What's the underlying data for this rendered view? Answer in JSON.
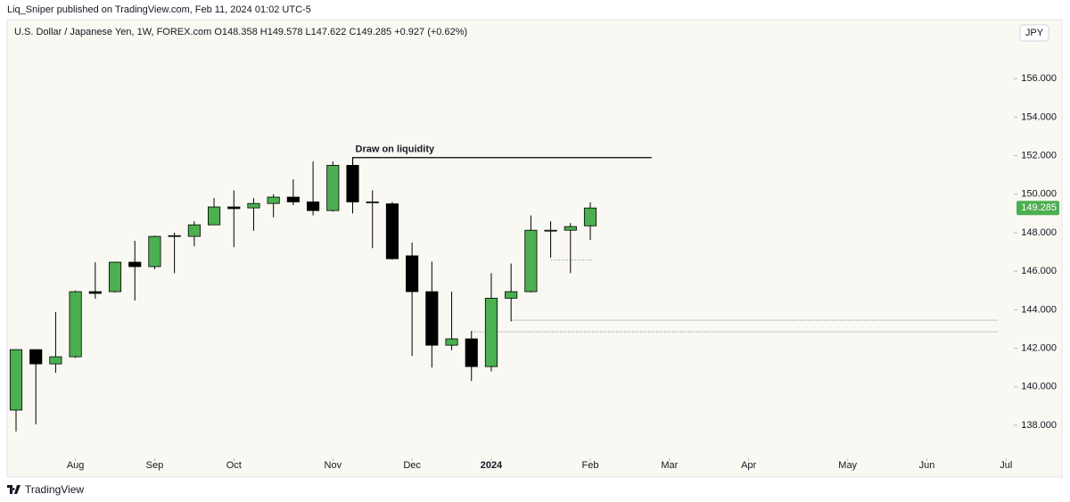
{
  "header": {
    "published": "Liq_Sniper published on TradingView.com, Feb 11, 2024 01:02 UTC-5"
  },
  "footer": {
    "brand": "TradingView"
  },
  "chart_data": {
    "type": "candlestick",
    "title": "U.S. Dollar / Japanese Yen, 1W, FOREX.com  O148.358  H149.578  L147.622  C149.285  +0.927 (+0.62%)",
    "currency": "JPY",
    "up_color": "#4caf50",
    "down_color": "#000000",
    "open": [
      138.79,
      141.93,
      141.19,
      141.56,
      144.94,
      144.94,
      146.47,
      146.24,
      147.81,
      147.81,
      148.41,
      149.34,
      149.29,
      149.52,
      149.85,
      149.6,
      149.15,
      151.5,
      149.6,
      149.5,
      146.8,
      144.94,
      142.16,
      142.49,
      141.05,
      144.6,
      144.94,
      148.13,
      148.13,
      148.358
    ],
    "high": [
      141.95,
      141.95,
      143.88,
      145.0,
      146.47,
      146.5,
      147.58,
      147.85,
      148.0,
      148.6,
      149.8,
      150.2,
      149.8,
      150.0,
      150.77,
      151.7,
      151.7,
      151.9,
      150.2,
      149.6,
      147.49,
      146.5,
      144.94,
      142.9,
      145.9,
      146.4,
      148.9,
      148.6,
      148.5,
      149.578
    ],
    "low": [
      137.68,
      138.05,
      140.73,
      141.5,
      144.57,
      144.9,
      144.48,
      146.1,
      145.9,
      147.3,
      148.4,
      147.25,
      148.1,
      148.8,
      149.43,
      148.9,
      149.1,
      149.0,
      147.2,
      146.6,
      141.6,
      141.0,
      141.9,
      140.3,
      140.8,
      143.4,
      144.9,
      146.7,
      145.9,
      147.622
    ],
    "close": [
      141.93,
      141.19,
      141.56,
      144.94,
      144.85,
      146.47,
      146.24,
      147.81,
      147.85,
      148.41,
      149.34,
      149.25,
      149.52,
      149.85,
      149.6,
      149.15,
      151.5,
      149.6,
      149.6,
      146.65,
      144.94,
      142.16,
      142.49,
      141.05,
      144.6,
      144.94,
      148.13,
      148.13,
      148.32,
      149.285
    ],
    "xlim": [
      -0.45,
      50.3
    ],
    "xticks": [
      {
        "value": 3,
        "label": "Aug"
      },
      {
        "value": 7,
        "label": "Sep"
      },
      {
        "value": 11,
        "label": "Oct"
      },
      {
        "value": 16,
        "label": "Nov"
      },
      {
        "value": 20,
        "label": "Dec"
      },
      {
        "value": 24,
        "label": "2024"
      },
      {
        "value": 29,
        "label": "Feb"
      },
      {
        "value": 33,
        "label": "Mar"
      },
      {
        "value": 37,
        "label": "Apr"
      },
      {
        "value": 42,
        "label": "May"
      },
      {
        "value": 46,
        "label": "Jun"
      },
      {
        "value": 50,
        "label": "Jul"
      }
    ],
    "ylim": [
      136.38,
      158.0
    ],
    "yticks": [
      {
        "value": 138,
        "label": "138.000"
      },
      {
        "value": 140,
        "label": "140.000"
      },
      {
        "value": 142,
        "label": "142.000"
      },
      {
        "value": 144,
        "label": "144.000"
      },
      {
        "value": 146,
        "label": "146.000"
      },
      {
        "value": 148,
        "label": "148.000"
      },
      {
        "value": 150,
        "label": "150.000"
      },
      {
        "value": 152,
        "label": "152.000"
      },
      {
        "value": 154,
        "label": "154.000"
      },
      {
        "value": 156,
        "label": "156.000"
      }
    ],
    "last_price": 149.285,
    "annotations": [
      {
        "text": "Draw on liquidity",
        "value": 151.9,
        "from": 17,
        "to": 32.1
      }
    ],
    "levels": [
      {
        "value": 146.6,
        "from": 27,
        "to": 29.1
      },
      {
        "value": 143.46,
        "from": 25,
        "to": 49.6
      },
      {
        "value": 142.86,
        "from": 23,
        "to": 49.6
      }
    ]
  }
}
